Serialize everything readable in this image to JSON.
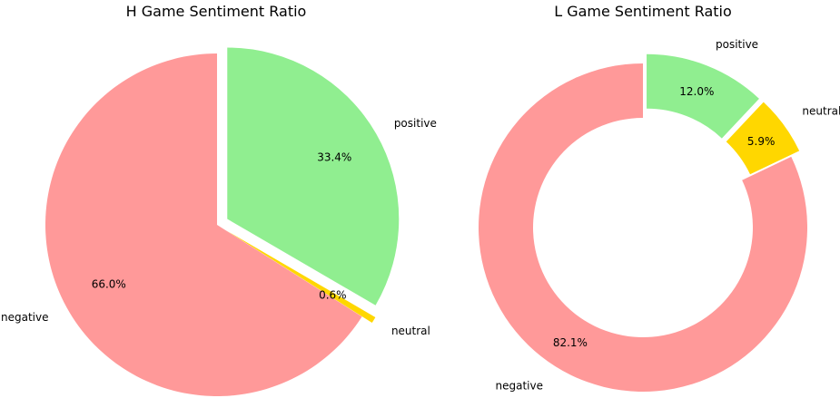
{
  "chart_data": [
    {
      "type": "pie",
      "title": "H Game Sentiment Ratio",
      "categories": [
        "positive",
        "neutral",
        "negative"
      ],
      "values": [
        33.4,
        0.6,
        66.0
      ],
      "value_labels": [
        "33.4%",
        "0.6%",
        "66.0%"
      ],
      "colors": [
        "#90EE90",
        "#FFD700",
        "#FF9999"
      ],
      "exploded": [
        true,
        true,
        false
      ],
      "start_angle": 90,
      "direction": "clockwise",
      "donut": false
    },
    {
      "type": "pie",
      "title": "L Game Sentiment Ratio",
      "categories": [
        "positive",
        "neutral",
        "negative"
      ],
      "values": [
        12.0,
        5.9,
        82.1
      ],
      "value_labels": [
        "12.0%",
        "5.9%",
        "82.1%"
      ],
      "colors": [
        "#90EE90",
        "#FFD700",
        "#FF9999"
      ],
      "exploded": [
        true,
        true,
        false
      ],
      "start_angle": 90,
      "direction": "clockwise",
      "donut": true
    }
  ]
}
